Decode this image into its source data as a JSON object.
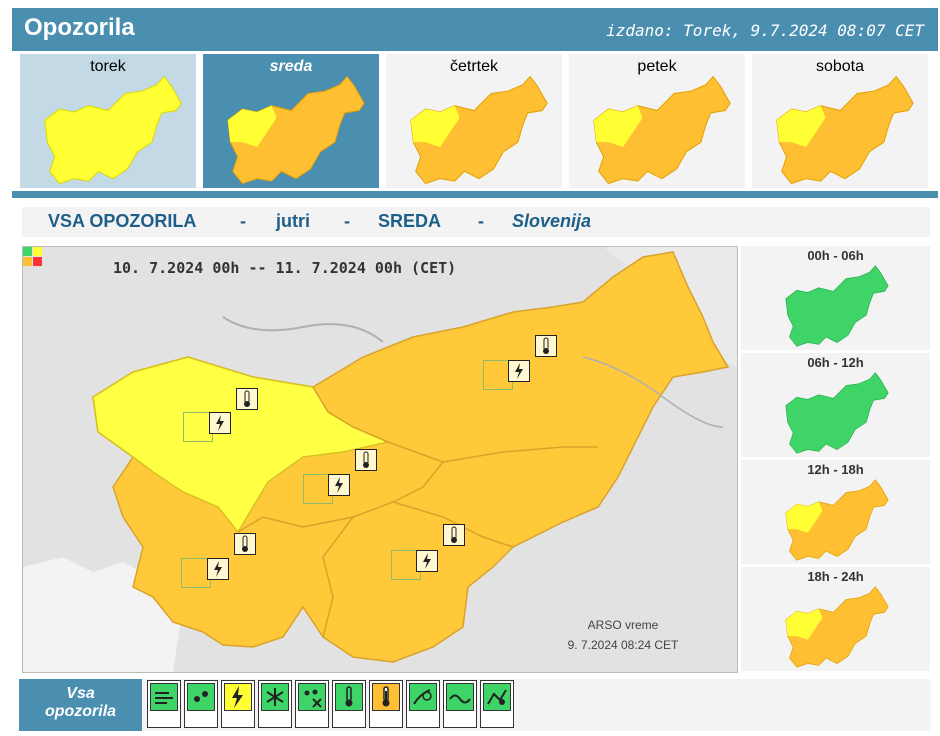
{
  "header": {
    "title": "Opozorila",
    "issued": "izdano: Torek, 9.7.2024 08:07 CET"
  },
  "days": [
    {
      "label": "torek"
    },
    {
      "label": "sreda"
    },
    {
      "label": "četrtek"
    },
    {
      "label": "petek"
    },
    {
      "label": "sobota"
    }
  ],
  "subheader": {
    "part1": "VSA OPOZORILA",
    "sep": "-",
    "part2": "jutri",
    "part3": "SREDA",
    "part4": "Slovenija"
  },
  "map": {
    "period": "10. 7.2024  00h -- 11. 7.2024  00h   (CET)",
    "credit": "ARSO vreme",
    "credit_time": "9. 7.2024  08:24 CET",
    "legend_colors": [
      "#3fd468",
      "#ffff33",
      "#ffbf33",
      "#ff3333"
    ]
  },
  "slots": [
    {
      "label": "00h - 06h"
    },
    {
      "label": "06h - 12h"
    },
    {
      "label": "12h - 18h"
    },
    {
      "label": "18h - 24h"
    }
  ],
  "bottom": {
    "all_label_1": "Vsa",
    "all_label_2": "opozorila",
    "icons": [
      {
        "name": "wind-icon",
        "color": "#3fd468"
      },
      {
        "name": "rain-icon",
        "color": "#3fd468"
      },
      {
        "name": "thunderstorm-icon",
        "color": "#ffff33"
      },
      {
        "name": "snow-icon",
        "color": "#3fd468"
      },
      {
        "name": "snow-ice-icon",
        "color": "#3fd468"
      },
      {
        "name": "low-temperature-icon",
        "color": "#3fd468"
      },
      {
        "name": "high-temperature-icon",
        "color": "#ffbf33"
      },
      {
        "name": "fog-icon",
        "color": "#3fd468"
      },
      {
        "name": "coastal-event-icon",
        "color": "#3fd468"
      },
      {
        "name": "avalanche-icon",
        "color": "#3fd468"
      }
    ]
  },
  "colors": {
    "accent": "#4a8eb0",
    "green": "#3fd468",
    "yellow": "#ffff33",
    "orange": "#ffbf33"
  }
}
